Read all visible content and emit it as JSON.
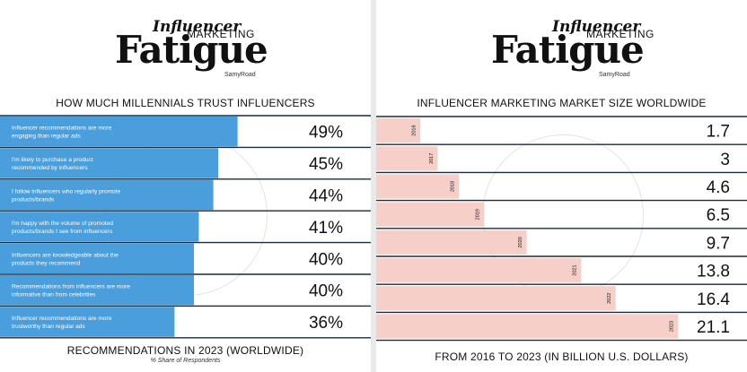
{
  "brand": {
    "script": "Influencer",
    "marketing": "MARKETING",
    "fatigue": "Fatigue",
    "byline": "SamyRoad"
  },
  "left": {
    "footer_title": "RECOMMENDATIONS IN 2023 (WORLDWIDE)",
    "footer_subtitle": "% Share of Respondents"
  },
  "right": {
    "footer_title": "FROM 2016 TO 2023 (IN BILLION U.S. DOLLARS)"
  },
  "colors": {
    "trust_bar": "#4a9edb",
    "market_bar": "#f5cfc8",
    "divider": "#1b2a3d"
  },
  "chart_data": [
    {
      "type": "bar",
      "orientation": "horizontal",
      "title": "HOW MUCH MILLENNIALS TRUST INFLUENCERS",
      "categories": [
        "Influencer recommendations are more engaging than regular ads",
        "I'm likely to purchase a product recommended by influencers",
        "I follow influencers who regularly promote products/brands",
        "I'm happy with the volume of promoted products/brands I see from influencers",
        "Influencers are knowledgeable about the products they recommend",
        "Recommendations from influencers are more informative than from celebrities",
        "Influencer recommendations are more trustworthy than regular ads"
      ],
      "values": [
        49,
        45,
        44,
        41,
        40,
        40,
        36
      ],
      "value_labels": [
        "49%",
        "45%",
        "44%",
        "41%",
        "40%",
        "40%",
        "36%"
      ],
      "xlim": [
        0,
        100
      ]
    },
    {
      "type": "bar",
      "orientation": "horizontal",
      "title": "INFLUENCER MARKETING MARKET SIZE WORLDWIDE",
      "categories": [
        "2016",
        "2017",
        "2018",
        "2019",
        "2020",
        "2021",
        "2022",
        "2023"
      ],
      "values": [
        1.7,
        3,
        4.6,
        6.5,
        9.7,
        13.8,
        16.4,
        21.1
      ],
      "value_labels": [
        "1.7",
        "3",
        "4.6",
        "6.5",
        "9.7",
        "13.8",
        "16.4",
        "21.1"
      ]
    }
  ]
}
